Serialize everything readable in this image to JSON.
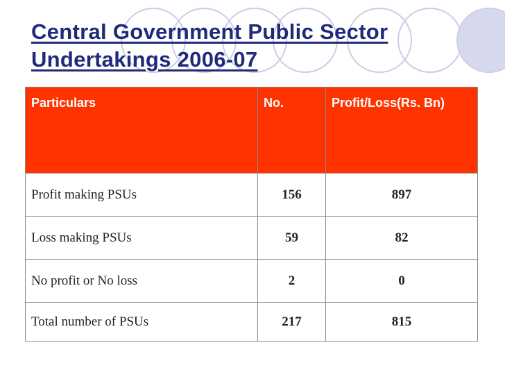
{
  "title_lines": [
    "Central Government Public Sector",
    "Undertakings 2006-07"
  ],
  "table": {
    "headers": [
      "Particulars",
      "No.",
      "Profit/Loss(Rs. Bn)"
    ],
    "rows": [
      [
        "Profit making PSUs",
        "156",
        "897"
      ],
      [
        "Loss making PSUs",
        "59",
        "82"
      ],
      [
        "No profit or No loss",
        "2",
        "0"
      ],
      [
        "Total number of PSUs",
        "217",
        "815"
      ]
    ]
  },
  "colors": {
    "header_bg": "#ff3300",
    "title": "#1f2a7a",
    "circle_stroke": "#c9cde6",
    "circle_fill": "#d6d9ee"
  },
  "decoration": "decorative-circles"
}
